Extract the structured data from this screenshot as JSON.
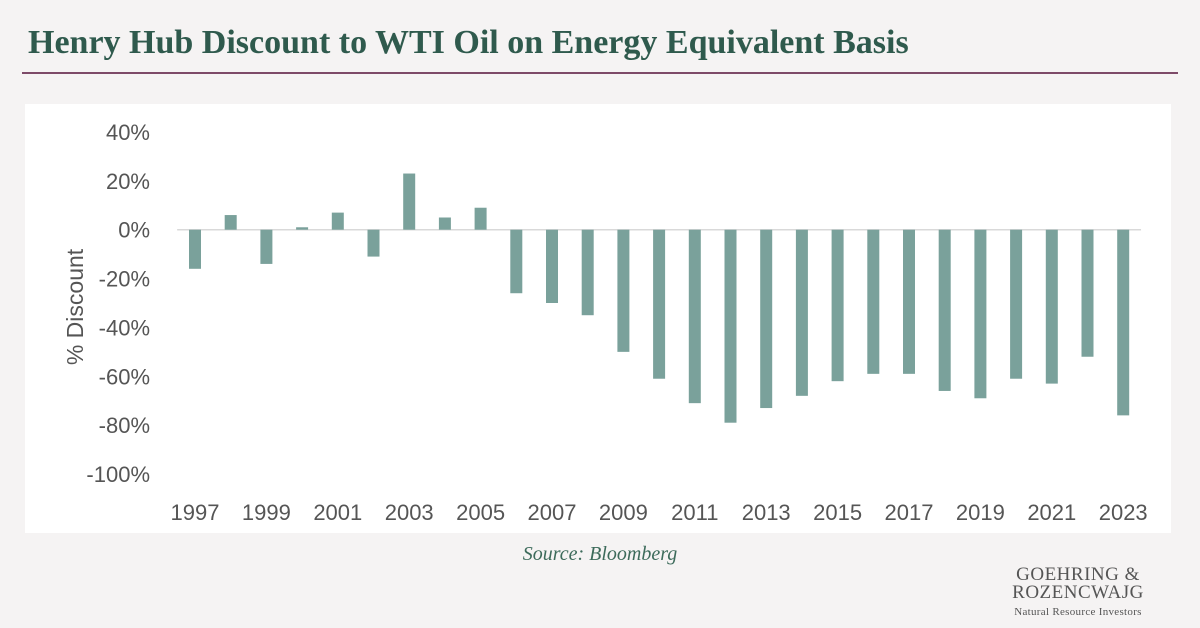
{
  "header": {
    "title": "Henry Hub Discount to WTI Oil on Energy Equivalent Basis"
  },
  "source": "Source: Bloomberg",
  "logo": {
    "line1": "GOEHRING &",
    "line2": "ROZENCWAJG",
    "tagline": "Natural Resource Investors"
  },
  "colors": {
    "bar": "#7aa19b",
    "title": "#2f5a4d",
    "rule": "#7d4a68",
    "axis_text": "#555555"
  },
  "chart_data": {
    "type": "bar",
    "title": "Henry Hub Discount to WTI Oil on Energy Equivalent Basis",
    "xlabel": "",
    "ylabel": "% Discount",
    "ylim": [
      -100,
      40
    ],
    "yticks": [
      40,
      20,
      0,
      -20,
      -40,
      -60,
      -80,
      -100
    ],
    "ytick_labels": [
      "40%",
      "20%",
      "0%",
      "-20%",
      "-40%",
      "-60%",
      "-80%",
      "-100%"
    ],
    "grid": false,
    "categories": [
      "1997",
      "1998",
      "1999",
      "2000",
      "2001",
      "2002",
      "2003",
      "2004",
      "2005",
      "2006",
      "2007",
      "2008",
      "2009",
      "2010",
      "2011",
      "2012",
      "2013",
      "2014",
      "2015",
      "2016",
      "2017",
      "2018",
      "2019",
      "2020",
      "2021",
      "2022",
      "2023"
    ],
    "xtick_labels": [
      "1997",
      "1999",
      "2001",
      "2003",
      "2005",
      "2007",
      "2009",
      "2011",
      "2013",
      "2015",
      "2017",
      "2019",
      "2021",
      "2023"
    ],
    "values": [
      -16,
      6,
      -14,
      1,
      7,
      -11,
      23,
      5,
      9,
      -26,
      -30,
      -35,
      -50,
      -61,
      -71,
      -79,
      -73,
      -68,
      -62,
      -59,
      -59,
      -66,
      -69,
      -61,
      -63,
      -52,
      -76
    ]
  }
}
